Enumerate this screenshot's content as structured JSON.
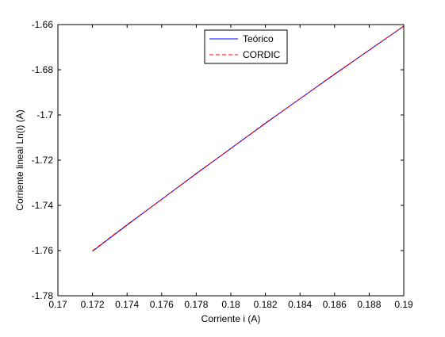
{
  "chart_data": {
    "type": "line",
    "title": "",
    "xlabel": "Corriente i (A)",
    "ylabel": "Corriente lineal Ln(i) (A)",
    "xlim": [
      0.17,
      0.19
    ],
    "ylim": [
      -1.78,
      -1.66
    ],
    "xticks": [
      0.17,
      0.172,
      0.174,
      0.176,
      0.178,
      0.18,
      0.182,
      0.184,
      0.186,
      0.188,
      0.19
    ],
    "xtick_labels": [
      "0.17",
      "0.172",
      "0.174",
      "0.176",
      "0.178",
      "0.18",
      "0.182",
      "0.184",
      "0.186",
      "0.188",
      "0.19"
    ],
    "yticks": [
      -1.66,
      -1.68,
      -1.7,
      -1.72,
      -1.74,
      -1.76,
      -1.78
    ],
    "ytick_labels": [
      "-1.66",
      "-1.68",
      "-1.7",
      "-1.72",
      "-1.74",
      "-1.76",
      "-1.78"
    ],
    "grid": false,
    "legend_position": "top-center",
    "series": [
      {
        "name": "Teórico",
        "color": "#0000ff",
        "style": "solid",
        "x": [
          0.172,
          0.174,
          0.176,
          0.178,
          0.18,
          0.182,
          0.184,
          0.186,
          0.188,
          0.19
        ],
        "y": [
          -1.7603,
          -1.7487,
          -1.7373,
          -1.726,
          -1.7148,
          -1.7037,
          -1.6928,
          -1.682,
          -1.6713,
          -1.6607
        ]
      },
      {
        "name": "CORDIC",
        "color": "#ff0000",
        "style": "dashed",
        "x": [
          0.172,
          0.174,
          0.176,
          0.178,
          0.18,
          0.182,
          0.184,
          0.186,
          0.188,
          0.19
        ],
        "y": [
          -1.7601,
          -1.7485,
          -1.7374,
          -1.7258,
          -1.7149,
          -1.7035,
          -1.6929,
          -1.6818,
          -1.6714,
          -1.6606
        ]
      }
    ]
  }
}
